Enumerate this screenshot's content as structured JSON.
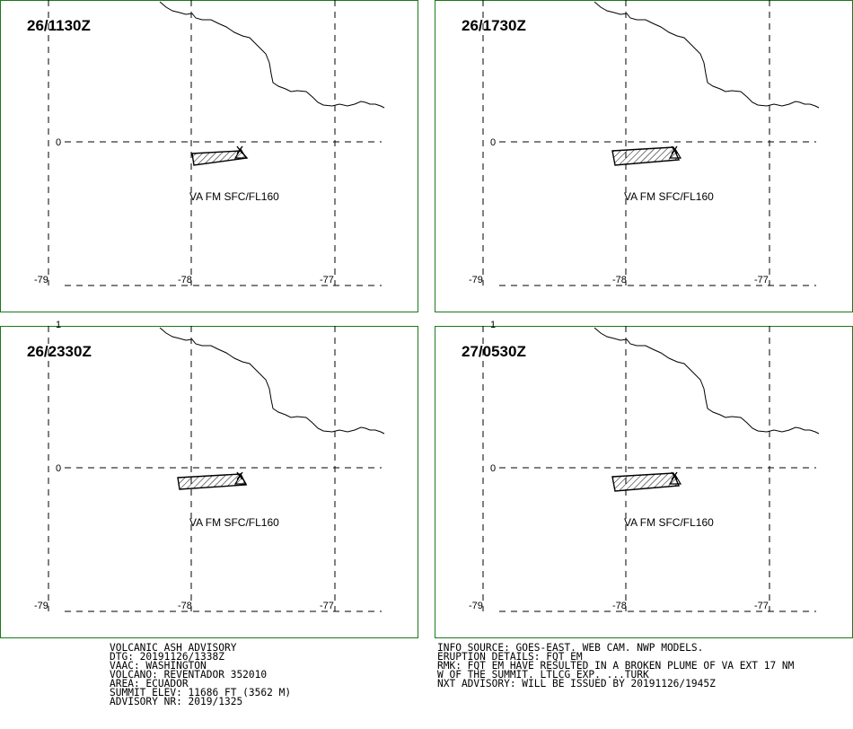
{
  "panels": [
    {
      "time": "26/1130Z",
      "va_label": "VA FM SFC/FL160",
      "plume_shape": "thin"
    },
    {
      "time": "26/1730Z",
      "va_label": "VA FM SFC/FL160",
      "plume_shape": "wide"
    },
    {
      "time": "26/2330Z",
      "va_label": "VA FM SFC/FL160",
      "plume_shape": "thick"
    },
    {
      "time": "27/0530Z",
      "va_label": "VA FM SFC/FL160",
      "plume_shape": "wide"
    }
  ],
  "axes": {
    "lon_ticks": [
      "-79",
      "-78",
      "-77"
    ],
    "lat_zero": "0",
    "lat_one": "1"
  },
  "colors": {
    "border": "#1a7a1a",
    "lines": "#000000",
    "background": "#ffffff"
  },
  "advisory": {
    "left_lines": [
      "VOLCANIC ASH ADVISORY",
      "DTG: 20191126/1338Z",
      "VAAC: WASHINGTON",
      "VOLCANO: REVENTADOR 352010",
      "AREA: ECUADOR",
      "SUMMIT ELEV: 11686 FT (3562 M)",
      "ADVISORY NR: 2019/1325"
    ],
    "right_lines": [
      "INFO SOURCE: GOES-EAST. WEB CAM. NWP MODELS.",
      "ERUPTION DETAILS: FQT EM",
      "RMK: FQT EM HAVE RESULTED IN A BROKEN PLUME OF VA EXT 17 NM",
      "W OF THE SUMMIT. LTLCG EXP. ...TURK",
      "NXT ADVISORY: WILL BE ISSUED BY 20191126/1945Z"
    ]
  }
}
